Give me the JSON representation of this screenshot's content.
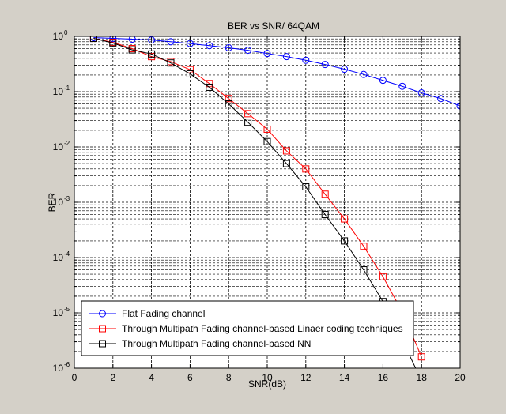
{
  "chart_data": {
    "type": "line",
    "title": "BER vs SNR/ 64QAM",
    "xlabel": "SNR(dB)",
    "ylabel": "BER",
    "xlim": [
      0,
      20
    ],
    "ylim": [
      1e-06,
      1
    ],
    "yscale": "log",
    "xticks": [
      0,
      2,
      4,
      6,
      8,
      10,
      12,
      14,
      16,
      18,
      20
    ],
    "ytick_exponents": [
      0,
      -1,
      -2,
      -3,
      -4,
      -5,
      -6
    ],
    "grid": true,
    "legend_position": "bottom-left",
    "x": [
      1,
      2,
      3,
      4,
      5,
      6,
      7,
      8,
      9,
      10,
      11,
      12,
      13,
      14,
      15,
      16,
      17,
      18,
      19,
      20
    ],
    "series": [
      {
        "name": "Flat Fading channel",
        "color": "#0000ff",
        "marker": "circle",
        "values": [
          0.95,
          0.92,
          0.89,
          0.86,
          0.8,
          0.74,
          0.68,
          0.62,
          0.56,
          0.49,
          0.43,
          0.37,
          0.31,
          0.255,
          0.205,
          0.16,
          0.125,
          0.095,
          0.075,
          0.055
        ]
      },
      {
        "name": "Through Multipath Fading channel-based Linaer coding techniques",
        "color": "#ff0000",
        "marker": "square",
        "values": [
          0.92,
          0.78,
          0.6,
          0.43,
          0.35,
          0.25,
          0.14,
          0.075,
          0.04,
          0.021,
          0.0085,
          0.004,
          0.0014,
          0.0005,
          0.00016,
          4.5e-05,
          1.05e-05,
          1.6e-06,
          null,
          null
        ]
      },
      {
        "name": "Through Multipath Fading channel-based NN",
        "color": "#000000",
        "marker": "square",
        "values": [
          0.92,
          0.76,
          0.57,
          0.48,
          0.33,
          0.21,
          0.12,
          0.06,
          0.028,
          0.0125,
          0.005,
          0.0019,
          0.0006,
          0.0002,
          6e-05,
          1.6e-05,
          3.2e-06,
          6e-07,
          null,
          null
        ]
      }
    ]
  }
}
